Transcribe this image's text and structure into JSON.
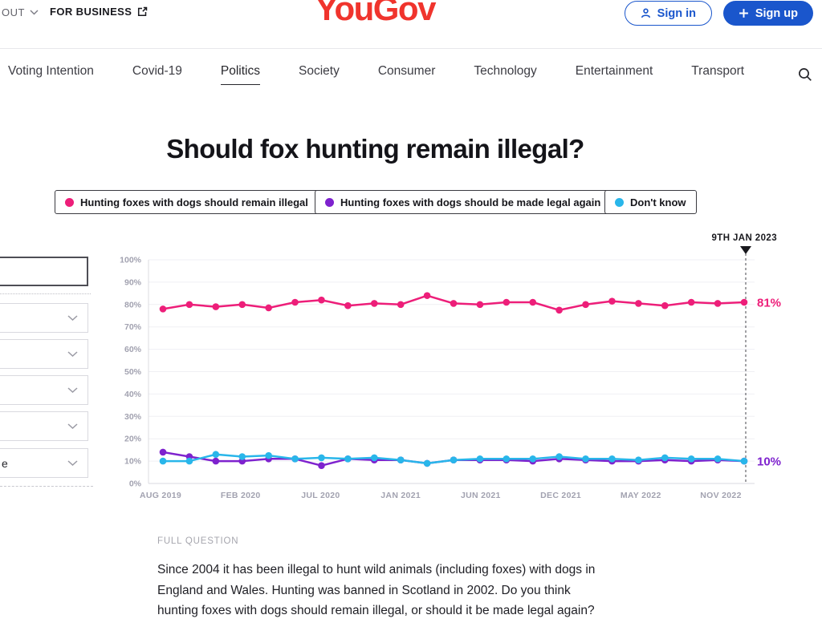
{
  "header": {
    "about_label": "OUT",
    "for_business_label": "FOR BUSINESS",
    "logo_text": "YouGov",
    "sign_in_label": "Sign in",
    "sign_up_label": "Sign up"
  },
  "colors": {
    "brand_red": "#f0342d",
    "button_blue": "#1a56cc",
    "series_pink": "#ed1e79",
    "series_purple": "#7e22ce",
    "series_cyan": "#29b6ea"
  },
  "icons": {
    "about_chevron": "chevron-down-icon",
    "for_business": "external-link-icon",
    "sign_in": "user-icon",
    "sign_up": "plus-icon",
    "nav_search": "search-icon",
    "dropdowns": "chevron-down-icon",
    "date_marker": "triangle-down-icon"
  },
  "nav": {
    "items": [
      {
        "label": "Voting Intention",
        "active": false
      },
      {
        "label": "Covid-19",
        "active": false
      },
      {
        "label": "Politics",
        "active": true
      },
      {
        "label": "Society",
        "active": false
      },
      {
        "label": "Consumer",
        "active": false
      },
      {
        "label": "Technology",
        "active": false
      },
      {
        "label": "Entertainment",
        "active": false
      },
      {
        "label": "Transport",
        "active": false
      }
    ]
  },
  "page": {
    "title": "Should fox hunting remain illegal?",
    "full_question_label": "FULL QUESTION",
    "full_question_text": "Since 2004 it has been illegal to hunt wild animals (including foxes) with dogs in England and Wales. Hunting was banned in Scotland in 2002. Do you think hunting foxes with dogs should remain illegal, or should it be made legal again?"
  },
  "legend": {
    "items": [
      {
        "label": "Hunting foxes with dogs should remain illegal",
        "color": "#ed1e79"
      },
      {
        "label": "Hunting foxes with dogs should be made legal again",
        "color": "#7e22ce"
      },
      {
        "label": "Don't know",
        "color": "#29b6ea"
      }
    ]
  },
  "sidebar": {
    "dropdowns": [
      {
        "visible_text": ""
      },
      {
        "visible_text": ""
      },
      {
        "visible_text": ""
      },
      {
        "visible_text": ""
      },
      {
        "visible_text": "e"
      }
    ]
  },
  "chart_data": {
    "type": "line",
    "title": "Should fox hunting remain illegal?",
    "ylim": [
      0,
      100
    ],
    "grid": true,
    "legend_position": "top",
    "y_ticks": [
      "100%",
      "90%",
      "80%",
      "70%",
      "60%",
      "50%",
      "40%",
      "30%",
      "20%",
      "10%",
      "0%"
    ],
    "x_tick_labels": [
      "AUG 2019",
      "FEB 2020",
      "JUL 2020",
      "JAN 2021",
      "JUN 2021",
      "DEC 2021",
      "MAY 2022",
      "NOV 2022"
    ],
    "x_range_note": "23 survey waves from AUG 2019 to 9TH JAN 2023, values estimated from plot",
    "annotation": {
      "label": "9TH JAN 2023"
    },
    "series": [
      {
        "name": "Hunting foxes with dogs should remain illegal",
        "color": "#ed1e79",
        "end_label": "81%",
        "values": [
          78,
          80,
          79,
          80,
          78.5,
          81,
          82,
          79.5,
          80.5,
          80,
          84,
          80.5,
          80,
          81,
          81,
          77.5,
          80,
          81.5,
          80.5,
          79.5,
          81,
          80.5,
          81
        ]
      },
      {
        "name": "Hunting foxes with dogs should be made legal again",
        "color": "#7e22ce",
        "end_label": "10%",
        "values": [
          14,
          12,
          10,
          10,
          11,
          11,
          8,
          11,
          10.5,
          10.5,
          9,
          10.5,
          10.5,
          10.5,
          10,
          11,
          10.5,
          10,
          10,
          10.5,
          10,
          10.5,
          10
        ]
      },
      {
        "name": "Don't know",
        "color": "#29b6ea",
        "end_label": null,
        "values": [
          10,
          10,
          13,
          12,
          12.5,
          11,
          11.5,
          11,
          11.5,
          10.5,
          9,
          10.5,
          11,
          11,
          11,
          12,
          11,
          11,
          10.5,
          11.5,
          11,
          11,
          10
        ]
      }
    ]
  }
}
